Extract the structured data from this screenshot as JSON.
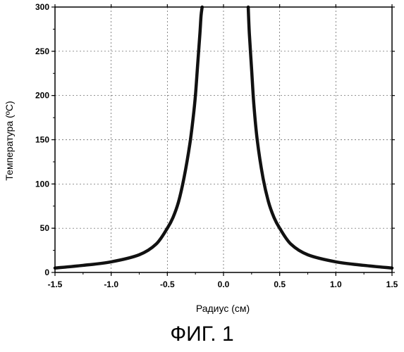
{
  "figure": {
    "caption": "ФИГ. 1"
  },
  "chart_data": {
    "type": "line",
    "xlabel": "Радиус (см)",
    "ylabel": "Температура (ºС)",
    "xlim": [
      -1.5,
      1.5
    ],
    "ylim": [
      0,
      300
    ],
    "x_ticks": [
      -1.5,
      -1.0,
      -0.5,
      0.0,
      0.5,
      1.0,
      1.5
    ],
    "x_tick_labels": [
      "-1.5",
      "-1.0",
      "-0.5",
      "0.0",
      "0.5",
      "1.0",
      "1.5"
    ],
    "y_ticks": [
      0,
      50,
      100,
      150,
      200,
      250,
      300
    ],
    "y_tick_labels": [
      "0",
      "50",
      "100",
      "150",
      "200",
      "250",
      "300"
    ],
    "grid": true,
    "line_color": "#111111",
    "series": [
      {
        "x": [
          -1.5,
          -1.25,
          -1.0,
          -0.75,
          -0.6,
          -0.5,
          -0.45,
          -0.4,
          -0.35,
          -0.3,
          -0.27,
          -0.25,
          -0.23,
          -0.21,
          -0.2,
          -0.19
        ],
        "y": [
          5,
          8,
          12,
          20,
          32,
          50,
          62,
          80,
          108,
          145,
          175,
          200,
          235,
          270,
          290,
          300
        ]
      },
      {
        "x": [
          0.22,
          0.23,
          0.25,
          0.27,
          0.3,
          0.35,
          0.4,
          0.45,
          0.5,
          0.6,
          0.75,
          1.0,
          1.25,
          1.5
        ],
        "y": [
          300,
          270,
          230,
          190,
          150,
          108,
          80,
          62,
          50,
          32,
          20,
          12,
          8,
          5
        ]
      }
    ]
  }
}
